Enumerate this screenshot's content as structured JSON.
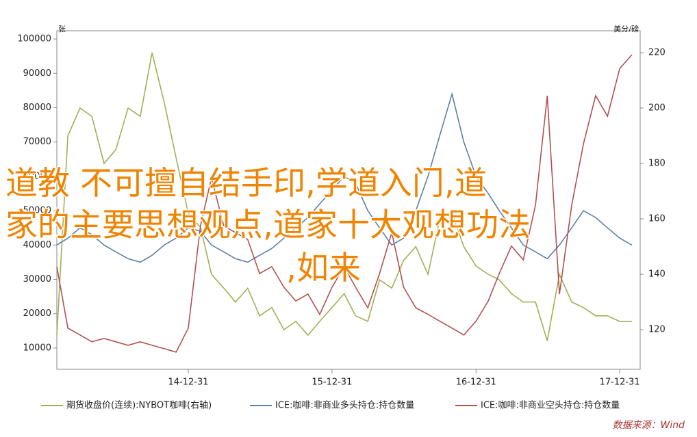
{
  "chart_data": {
    "type": "line",
    "title_lines": [
      "道教 不可擅自结手印,学道入门,道",
      "家的主要思想观点,道家十大观想功法",
      ",如来"
    ],
    "y_label": "张",
    "y2_label": "美分/磅",
    "source": "数据来源：Wind",
    "x": [
      "2014-01-31",
      "2014-02-28",
      "2014-03-31",
      "2014-04-30",
      "2014-05-31",
      "2014-06-30",
      "2014-07-31",
      "2014-08-31",
      "2014-09-30",
      "2014-10-31",
      "2014-11-30",
      "2014-12-31",
      "2015-01-31",
      "2015-02-28",
      "2015-03-31",
      "2015-04-30",
      "2015-05-31",
      "2015-06-30",
      "2015-07-31",
      "2015-08-31",
      "2015-09-30",
      "2015-10-31",
      "2015-11-30",
      "2015-12-31",
      "2016-01-31",
      "2016-02-29",
      "2016-03-31",
      "2016-04-30",
      "2016-05-31",
      "2016-06-30",
      "2016-07-31",
      "2016-08-31",
      "2016-09-30",
      "2016-10-31",
      "2016-11-30",
      "2016-12-31",
      "2017-01-31",
      "2017-02-28",
      "2017-03-31",
      "2017-04-30",
      "2017-05-31",
      "2017-06-30",
      "2017-07-31",
      "2017-08-31",
      "2017-09-30",
      "2017-10-31",
      "2017-11-30",
      "2017-12-31",
      "2018-01-31"
    ],
    "xlim": [
      "2014-01-31",
      "2018-02-21"
    ],
    "xticks": [
      {
        "value": "2014-12-31",
        "label": "14-12-31"
      },
      {
        "value": "2015-12-31",
        "label": "15-12-31"
      },
      {
        "value": "2016-12-31",
        "label": "16-12-31"
      },
      {
        "value": "2017-12-31",
        "label": "17-12-31"
      }
    ],
    "ylim": [
      3800,
      102400
    ],
    "yticks": [
      10000,
      20000,
      30000,
      40000,
      50000,
      60000,
      70000,
      80000,
      90000,
      100000
    ],
    "y2lim": [
      105.7,
      227.9
    ],
    "y2ticks": [
      120,
      140,
      160,
      180,
      200,
      220
    ],
    "series": [
      {
        "name": "期货收盘价(连续):NYBOT咖啡(右轴)",
        "color": "#9fb152",
        "axis": "y2",
        "values": [
          118,
          190,
          200,
          197,
          180,
          185,
          200,
          197,
          220,
          202,
          182,
          162,
          157,
          140,
          135,
          130,
          135,
          125,
          128,
          120,
          123,
          118,
          123,
          128,
          133,
          125,
          123,
          138,
          135,
          145,
          150,
          140,
          160,
          162,
          150,
          143,
          140,
          138,
          133,
          130,
          130,
          116,
          140,
          130,
          128,
          125,
          125,
          123,
          123
        ]
      },
      {
        "name": "ICE:咖啡:非商业多头持仓:持仓数量",
        "color": "#5a7fa8",
        "values": [
          40000,
          42000,
          45000,
          43000,
          40000,
          38000,
          36000,
          35000,
          37000,
          40000,
          42000,
          45000,
          44000,
          40000,
          38000,
          36000,
          35000,
          37000,
          39000,
          42000,
          45000,
          48000,
          52000,
          56000,
          60000,
          58000,
          50000,
          45000,
          40000,
          42000,
          50000,
          60000,
          72000,
          84000,
          70000,
          60000,
          55000,
          50000,
          45000,
          40000,
          38000,
          36000,
          40000,
          45000,
          50000,
          48000,
          45000,
          42000,
          40000
        ]
      },
      {
        "name": "ICE:咖啡:非商业空头持仓:持仓数量",
        "color": "#b4504e",
        "values": [
          33700,
          15800,
          13800,
          11800,
          12800,
          11800,
          10800,
          11800,
          10800,
          9800,
          8800,
          15800,
          45600,
          59600,
          45600,
          43600,
          41600,
          31700,
          33700,
          27700,
          23700,
          25700,
          19800,
          27700,
          33700,
          27700,
          21700,
          31700,
          43600,
          27700,
          21700,
          19800,
          17800,
          15800,
          13800,
          17800,
          23700,
          31700,
          39700,
          35700,
          51600,
          83500,
          25700,
          51600,
          69500,
          83500,
          77500,
          91400,
          95400
        ]
      }
    ]
  }
}
